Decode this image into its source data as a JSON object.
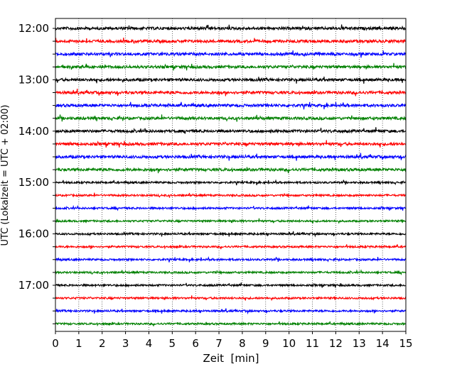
{
  "chart_data": {
    "type": "line",
    "title": "",
    "xlabel": "Zeit  [min]",
    "ylabel": "UTC (Lokalzeit = UTC + 02:00)",
    "xlim": [
      0,
      15
    ],
    "x_ticks": [
      "0",
      "1",
      "2",
      "3",
      "4",
      "5",
      "6",
      "7",
      "8",
      "9",
      "10",
      "11",
      "12",
      "13",
      "14",
      "15"
    ],
    "y_tick_labels": [
      "12:00",
      "13:00",
      "14:00",
      "15:00",
      "16:00",
      "17:00"
    ],
    "grid": "vertical dotted lines at each minute",
    "trace_interval_minutes": 15,
    "trace_colors": [
      "#000000",
      "#ff0000",
      "#0000ff",
      "#008000"
    ],
    "traces": [
      {
        "start": "12:00",
        "color": "#000000"
      },
      {
        "start": "12:15",
        "color": "#ff0000"
      },
      {
        "start": "12:30",
        "color": "#0000ff"
      },
      {
        "start": "12:45",
        "color": "#008000"
      },
      {
        "start": "13:00",
        "color": "#000000"
      },
      {
        "start": "13:15",
        "color": "#ff0000"
      },
      {
        "start": "13:30",
        "color": "#0000ff"
      },
      {
        "start": "13:45",
        "color": "#008000"
      },
      {
        "start": "14:00",
        "color": "#000000"
      },
      {
        "start": "14:15",
        "color": "#ff0000"
      },
      {
        "start": "14:30",
        "color": "#0000ff"
      },
      {
        "start": "14:45",
        "color": "#008000"
      },
      {
        "start": "15:00",
        "color": "#000000"
      },
      {
        "start": "15:15",
        "color": "#ff0000"
      },
      {
        "start": "15:30",
        "color": "#0000ff"
      },
      {
        "start": "15:45",
        "color": "#008000"
      },
      {
        "start": "16:00",
        "color": "#000000"
      },
      {
        "start": "16:15",
        "color": "#ff0000"
      },
      {
        "start": "16:30",
        "color": "#0000ff"
      },
      {
        "start": "16:45",
        "color": "#008000"
      },
      {
        "start": "17:00",
        "color": "#000000"
      },
      {
        "start": "17:15",
        "color": "#ff0000"
      },
      {
        "start": "17:30",
        "color": "#0000ff"
      },
      {
        "start": "17:45",
        "color": "#008000"
      }
    ]
  }
}
